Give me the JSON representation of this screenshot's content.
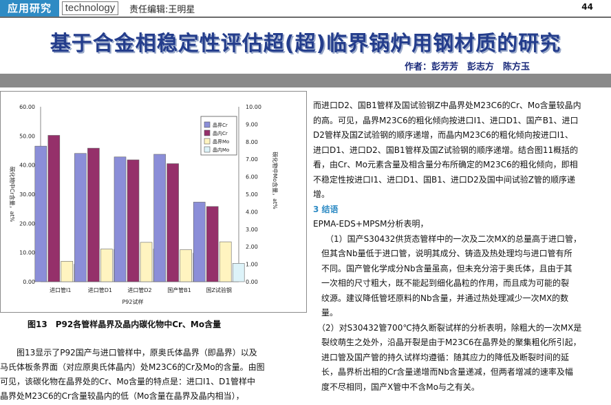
{
  "header": {
    "section_label": "应用研究",
    "section_label_en": "technology",
    "editor": "责任编辑:王明星",
    "page_number": "44"
  },
  "article": {
    "title": "基于合金相稳定性评估超(超)临界锅炉用钢材质的研究",
    "authors": "作者：彭芳芳　彭志方　陈方玉"
  },
  "figure": {
    "caption": "图13　P92各管样晶界及晶内碳化物中Cr、Mo含量"
  },
  "chart_data": {
    "type": "bar",
    "categories": [
      "进口管I1",
      "进口管D1",
      "进口管D2",
      "国产管B1",
      "国Z试验钢"
    ],
    "xlabel": "P92试样",
    "ylabel": "碳化物中Cr含量，at%",
    "ylabel_right": "碳化物中Mo含量，at%",
    "left_ticks": [
      "0.00",
      "10.00",
      "20.00",
      "30.00",
      "40.00",
      "50.00",
      "60.00"
    ],
    "right_ticks": [
      "0.00",
      "1.00",
      "2.00",
      "3.00",
      "4.00",
      "5.00",
      "6.00",
      "7.00",
      "8.00",
      "9.00",
      "10.00"
    ],
    "ylim": [
      0,
      60
    ],
    "ylim_right": [
      0,
      10
    ],
    "legend_position": "top-right",
    "series": [
      {
        "name": "晶界Cr",
        "axis": "left",
        "color": "#8b8ed8",
        "values": [
          46.5,
          44.0,
          42.8,
          43.7,
          27.3
        ]
      },
      {
        "name": "晶内Cr",
        "axis": "left",
        "color": "#95306a",
        "values": [
          50.2,
          45.8,
          41.8,
          40.5,
          25.8
        ]
      },
      {
        "name": "晶界Mo",
        "axis": "right",
        "color": "#fff4c0",
        "values": [
          1.17,
          1.87,
          2.25,
          1.83,
          2.28
        ]
      },
      {
        "name": "晶内Mo",
        "axis": "right",
        "color": "#ddf3f9",
        "values": [
          1.0,
          1.85,
          1.87,
          1.63,
          1.05
        ]
      }
    ]
  },
  "left_body": {
    "lines": [
      "　　图13显示了P92国产与进口管样中，原奥氏体晶界（即晶界）以及",
      "马氏体板条界面（对应原奥氏体晶内）处M23C6的Cr及Mo的含量。由图",
      "可见，该碳化物在晶界处的Cr、Mo含量的特点是：进口I1、D1管样中",
      "晶界处M23C6的Cr含量较晶内的低（Mo含量在晶界及晶内相当），"
    ]
  },
  "right_body": {
    "para1_lines": [
      "而进口D2、国B1管样及国试验钢Z中晶界处M23C6的Cr、Mo含量较晶内",
      "的高。可见，晶界M23C6的粗化倾向按进口I1、进口D1、国产B1、进口",
      "D2管样及国Z试验钢的顺序递增，而晶内M23C6的粗化倾向按进口I1、",
      "进口D1、进口D2、国B1管样及国Z试验钢的顺序递增。结合图11概括的",
      "看，由Cr、Mo元素含量及相含量分布所确定的M23C6的粗化倾向，即相",
      "不稳定性按进口I1、进口D1、国B1、进口D2及国中间试验Z管的顺序递",
      "增。"
    ],
    "section_heading": "3 结语",
    "intro": "EPMA-EDS+MPSM分析表明，",
    "item1_lines": [
      "　　（1）国产S30432供货态管样中的一次及二次MX的总量高于进口管，",
      "　但其含Nb量低于进口管，说明其成分、铸造及热处理均与进口管有所",
      "　不同。国产管化学成分Nb含量虽高，但未充分溶于奥氏体，且由于其",
      "　一次相的尺寸粗大，既不能起到细化晶粒的作用，而且成为可能的裂",
      "　纹源。建议降低管坯原料的Nb含量，并通过热处理减少一次MX的数",
      "　量。"
    ],
    "item2_lines": [
      "　（2）对S30432管700℃持久断裂试样的分析表明，除粗大的一次MX是",
      "　裂纹萌生之处外，沿晶开裂是由于M23C6在晶界处的聚集粗化所引起，",
      "　进口管及国产管的持久试样均遵循：随其应力的降低及断裂时间的延",
      "　长，晶界析出相的Cr含量递增而Nb含量递减，但两者增减的速率及幅",
      "　度不尽相同，国产X管中不含Mo与之有关。"
    ]
  }
}
